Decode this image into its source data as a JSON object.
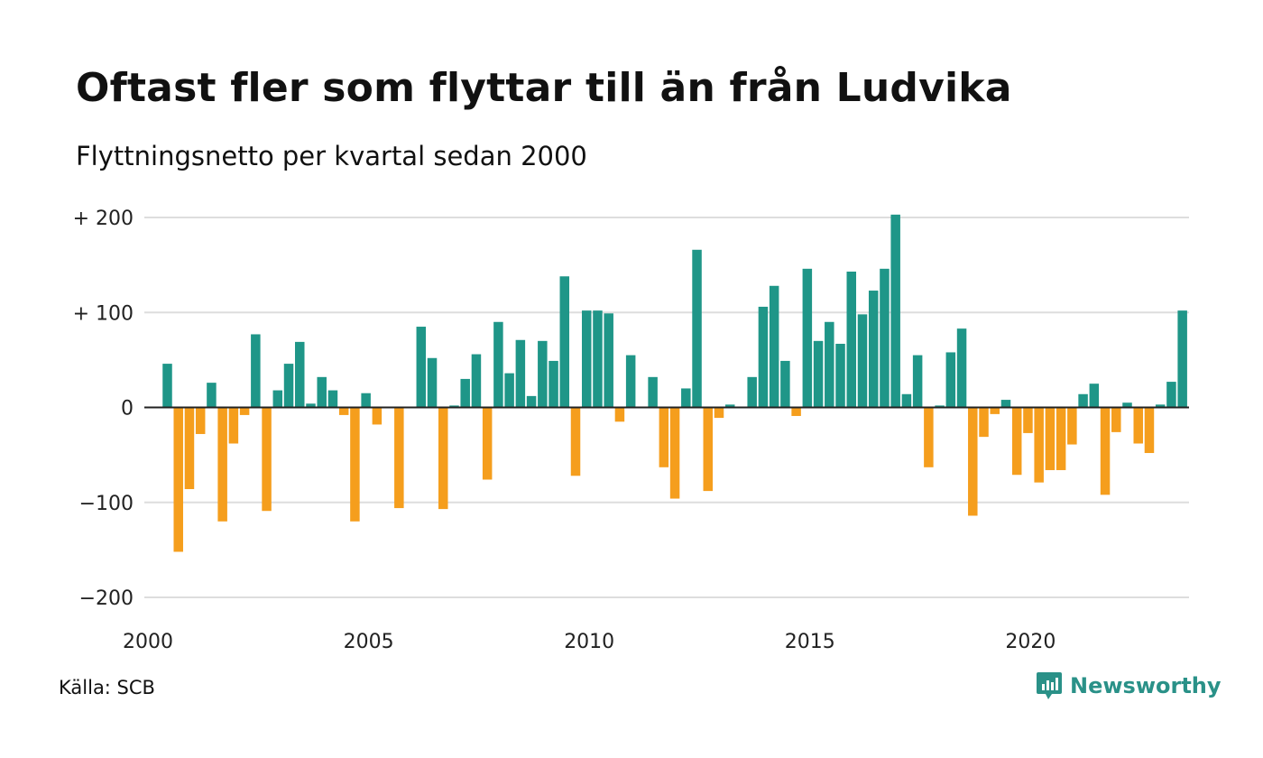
{
  "title": "Oftast fler som flyttar till än från Ludvika",
  "subtitle": "Flyttningsnetto per kvartal sedan 2000",
  "source": "Källa: SCB",
  "brand": {
    "name": "Newsworthy",
    "icon": "newsworthy-logo-icon"
  },
  "colors": {
    "positive": "#1f9688",
    "negative": "#f59e1d",
    "grid": "#dddddd",
    "zero": "#222222",
    "brand": "#2a9188"
  },
  "chart_data": {
    "type": "bar",
    "ylim": [
      -200,
      200
    ],
    "y_ticks": [
      200,
      100,
      0,
      -100,
      -200
    ],
    "y_tick_labels": [
      "+ 200",
      "+ 100",
      "0",
      "−100",
      "−200"
    ],
    "x_ticks": [
      "2000",
      "2005",
      "2010",
      "2015",
      "2020"
    ],
    "grid": true,
    "series": [
      {
        "values": [
          46,
          -152,
          -86,
          -28,
          26,
          -120,
          -38,
          -8,
          77,
          -109,
          18,
          46,
          69,
          4,
          32,
          18,
          -8,
          -120,
          15,
          -18,
          0,
          -106,
          0,
          85,
          52,
          -107,
          2,
          30,
          56,
          -76,
          90,
          36,
          71,
          12,
          70,
          49,
          138,
          -72,
          102,
          102,
          99,
          -15,
          55,
          0,
          32,
          -63,
          -96,
          20,
          166,
          -88,
          -11,
          3,
          0,
          32,
          106,
          128,
          49,
          -9,
          146,
          70,
          90,
          67,
          143,
          98,
          123,
          146,
          203,
          14,
          55,
          -63,
          2,
          58,
          83,
          -114,
          -31,
          -7,
          8,
          -71,
          -27,
          -79,
          -66,
          -66,
          -39,
          14,
          25,
          -92,
          -26,
          5,
          -38,
          -48,
          3,
          27,
          102
        ]
      }
    ]
  }
}
